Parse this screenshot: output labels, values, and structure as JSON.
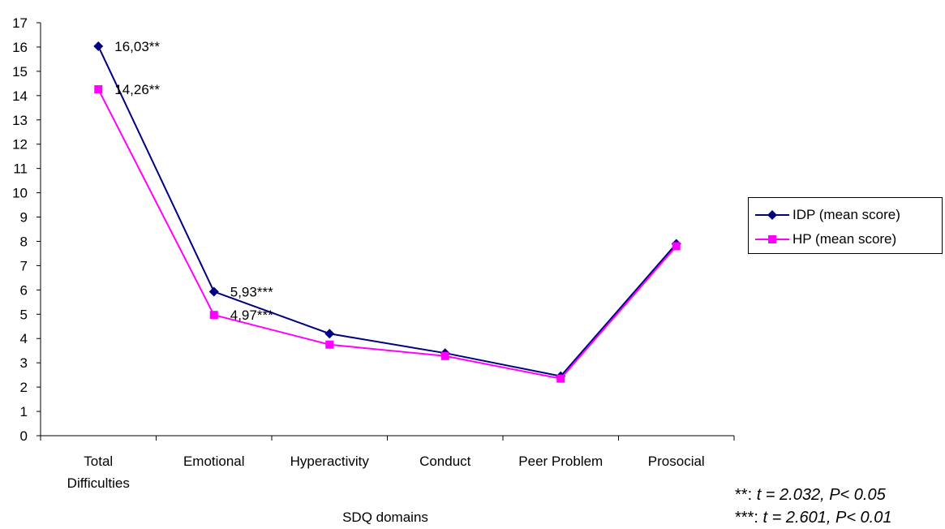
{
  "chart_data": {
    "type": "line",
    "xlabel": "SDQ domains",
    "ylabel": "",
    "ylim": [
      0,
      17
    ],
    "y_ticks": [
      "0",
      "1",
      "2",
      "3",
      "4",
      "5",
      "6",
      "7",
      "8",
      "9",
      "10",
      "11",
      "12",
      "13",
      "14",
      "15",
      "16",
      "17"
    ],
    "categories": [
      [
        "Total",
        "Difficulties"
      ],
      [
        "Emotional"
      ],
      [
        "Hyperactivity"
      ],
      [
        "Conduct"
      ],
      [
        "Peer Problem"
      ],
      [
        "Prosocial"
      ]
    ],
    "series": [
      {
        "name": "IDP (mean score)",
        "color": "#000080",
        "marker": "diamond",
        "values": [
          16.03,
          5.93,
          4.2,
          3.4,
          2.45,
          7.9
        ]
      },
      {
        "name": "HP (mean score)",
        "color": "#ff00ff",
        "marker": "square",
        "values": [
          14.26,
          4.97,
          3.75,
          3.28,
          2.35,
          7.8
        ]
      }
    ],
    "data_labels": [
      {
        "text": "16,03**",
        "series": 0,
        "index": 0
      },
      {
        "text": "14,26**",
        "series": 1,
        "index": 0
      },
      {
        "text": "5,93***",
        "series": 0,
        "index": 1
      },
      {
        "text": "4,97***",
        "series": 1,
        "index": 1
      }
    ],
    "legend_position": "right",
    "grid": false
  },
  "legend": {
    "items": [
      {
        "label": "IDP (mean score)",
        "color": "#000080",
        "marker": "diamond"
      },
      {
        "label": "HP (mean score)",
        "color": "#ff00ff",
        "marker": "square"
      }
    ]
  },
  "footnotes": [
    {
      "marker": "**:",
      "stat": "t = 2.032, P< 0.05"
    },
    {
      "marker": "***:",
      "stat": "t = 2.601, P< 0.01"
    }
  ]
}
